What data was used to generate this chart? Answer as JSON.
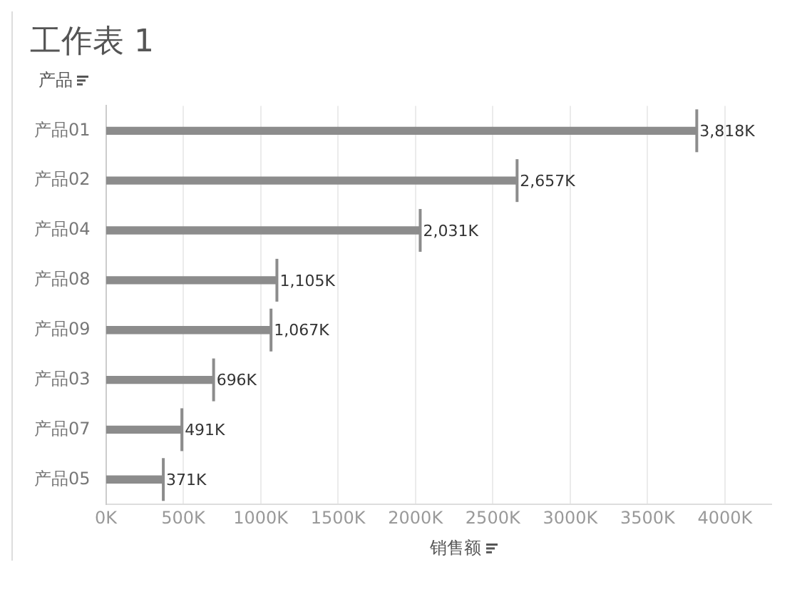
{
  "chart_data": {
    "type": "bar",
    "orientation": "horizontal",
    "title": "工作表 1",
    "ylabel": "产品",
    "xlabel": "销售额",
    "categories": [
      "产品01",
      "产品02",
      "产品04",
      "产品08",
      "产品09",
      "产品03",
      "产品07",
      "产品05"
    ],
    "values": [
      3818,
      2657,
      2031,
      1105,
      1067,
      696,
      491,
      371
    ],
    "value_labels": [
      "3,818K",
      "2,657K",
      "2,031K",
      "1,105K",
      "1,067K",
      "696K",
      "491K",
      "371K"
    ],
    "color": "#8c8c8c",
    "xlim": [
      0,
      4300
    ],
    "xticks": [
      {
        "value": 0,
        "label": "0K"
      },
      {
        "value": 500,
        "label": "500K"
      },
      {
        "value": 1000,
        "label": "1000K"
      },
      {
        "value": 1500,
        "label": "1500K"
      },
      {
        "value": 2000,
        "label": "2000K"
      },
      {
        "value": 2500,
        "label": "2500K"
      },
      {
        "value": 3000,
        "label": "3000K"
      },
      {
        "value": 3500,
        "label": "3500K"
      },
      {
        "value": 4000,
        "label": "4000K"
      }
    ],
    "grid": "x",
    "legend": false
  }
}
